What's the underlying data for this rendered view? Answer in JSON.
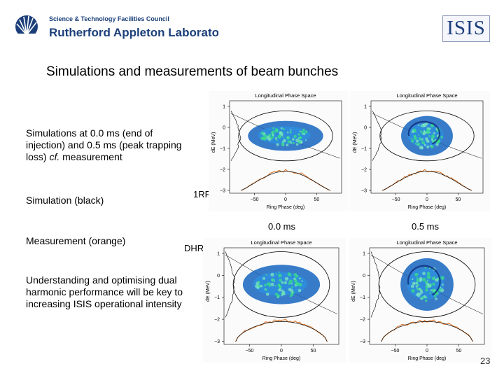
{
  "header": {
    "org_small": "Science & Technology Facilities Council",
    "org_big": "Rutherford Appleton Laboratory",
    "isis_logo": "ISIS"
  },
  "title": "Simulations and measurements of beam bunches",
  "bullets": [
    {
      "html": "Simulations at 0.0 ms (end of injection) and 0.5 ms (peak trapping loss) <i>cf.</i> measurement"
    },
    {
      "text": "Simulation (black)"
    },
    {
      "text": "Measurement (orange)"
    },
    {
      "text": "Understanding and optimising dual harmonic performance will be key to increasing ISIS operational intensity"
    }
  ],
  "labels": {
    "rf1": "1RF",
    "dhrf": "DHRF",
    "time_a": "0.0 ms",
    "time_b": "0.5 ms"
  },
  "page_number": "23",
  "plot_text": {
    "title": "Longitudinal Phase Space",
    "xlabel": "Ring Phase (deg)",
    "ylabel": "dE (MeV)",
    "xticks": [
      "−50",
      "0",
      "50"
    ],
    "yticks": [
      "1",
      "0",
      "−1",
      "−2",
      "−3"
    ]
  },
  "colors": {
    "logo_blue": "#1c3f7a",
    "density_low": "#1565c0",
    "density_high": "#38e08a",
    "measurement": "#e0782a",
    "simulation": "#000000"
  }
}
